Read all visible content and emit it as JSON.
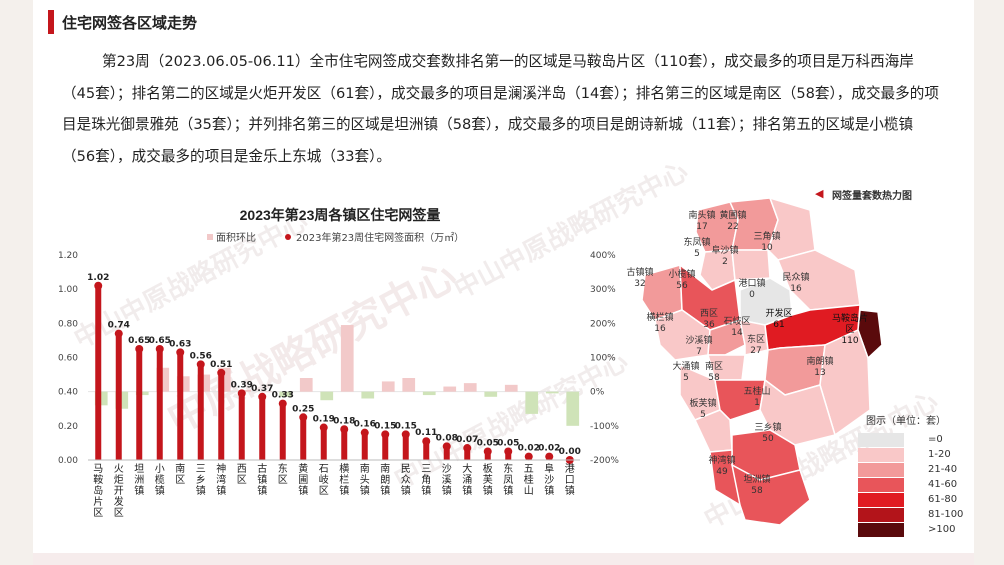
{
  "section_title": "住宅网签各区域走势",
  "paragraph": "第23周（2023.06.05-06.11）全市住宅网签成交套数排名第一的区域是马鞍岛片区（110套），成交最多的项目是万科西海岸（45套）；排名第二的区域是火炬开发区（61套），成交最多的项目是澜溪泮岛（14套）；排名第三的区域是南区（58套），成交最多的项目是珠光御景雅苑（35套）；并列排名第三的区域是坦洲镇（58套），成交最多的项目是朗诗新城（11套）；排名第五的区域是小榄镇（56套），成交最多的项目是金乐上东城（33套）。",
  "watermarks": [
    "中山中原战略研究中心",
    "中原战略研究中心",
    "中山中原战略研究中心",
    "中山中原战略研究中心",
    "中山中原战略研究中心"
  ],
  "chart_data": {
    "type": "bar",
    "title": "2023年第23周各镇区住宅网签量",
    "legend": [
      "面积环比",
      "2023年第23周住宅网签面积（万㎡）"
    ],
    "categories": [
      "马鞍岛片区",
      "火炬开发区",
      "坦洲镇",
      "小榄镇",
      "南区",
      "三乡镇",
      "神湾镇",
      "西区",
      "古镇镇",
      "东区",
      "黄圃镇",
      "石岐区",
      "横栏镇",
      "南头镇",
      "南朗镇",
      "民众镇",
      "三角镇",
      "沙溪镇",
      "大涌镇",
      "板芙镇",
      "东凤镇",
      "五桂山",
      "阜沙镇",
      "港口镇"
    ],
    "series": [
      {
        "name": "2023年第23周住宅网签面积（万㎡）",
        "axis": "left",
        "values": [
          1.02,
          0.74,
          0.65,
          0.65,
          0.63,
          0.56,
          0.51,
          0.39,
          0.37,
          0.33,
          0.25,
          0.19,
          0.18,
          0.16,
          0.15,
          0.15,
          0.11,
          0.08,
          0.07,
          0.05,
          0.05,
          0.02,
          0.02,
          0.0
        ]
      },
      {
        "name": "面积环比",
        "axis": "right",
        "values": [
          -40,
          -50,
          -10,
          70,
          45,
          50,
          70,
          5,
          0,
          -15,
          40,
          -25,
          195,
          -20,
          30,
          40,
          -10,
          15,
          25,
          -15,
          20,
          -65,
          -5,
          -100
        ]
      }
    ],
    "y_left": {
      "min": 0,
      "max": 1.2,
      "ticks": [
        "0.00",
        "0.20",
        "0.40",
        "0.60",
        "0.80",
        "1.00",
        "1.20"
      ]
    },
    "y_right": {
      "min": -200,
      "max": 400,
      "ticks": [
        "-200%",
        "-100%",
        "0%",
        "100%",
        "200%",
        "300%",
        "400%"
      ]
    },
    "colors": {
      "area_bar": "#c4161c",
      "ratio_pos": "#f2c9c9",
      "ratio_neg": "#cfe3b8"
    }
  },
  "map": {
    "title": "网签量套数热力图",
    "towns": [
      {
        "name": "南头镇",
        "value": "17"
      },
      {
        "name": "黄圃镇",
        "value": "22"
      },
      {
        "name": "东凤镇",
        "value": "5"
      },
      {
        "name": "三角镇",
        "value": "10"
      },
      {
        "name": "阜沙镇",
        "value": "2"
      },
      {
        "name": "古镇镇",
        "value": "32"
      },
      {
        "name": "小榄镇",
        "value": "56"
      },
      {
        "name": "港口镇",
        "value": "0"
      },
      {
        "name": "民众镇",
        "value": "16"
      },
      {
        "name": "横栏镇",
        "value": "16"
      },
      {
        "name": "西区",
        "value": "36"
      },
      {
        "name": "石岐区",
        "value": "14"
      },
      {
        "name": "开发区",
        "value": "61"
      },
      {
        "name": "马鞍岛片区",
        "value": "110"
      },
      {
        "name": "沙溪镇",
        "value": "7"
      },
      {
        "name": "东区",
        "value": "27"
      },
      {
        "name": "大涌镇",
        "value": "5"
      },
      {
        "name": "南区",
        "value": "58"
      },
      {
        "name": "南朗镇",
        "value": "13"
      },
      {
        "name": "五桂山",
        "value": "1"
      },
      {
        "name": "板芙镇",
        "value": "5"
      },
      {
        "name": "三乡镇",
        "value": "50"
      },
      {
        "name": "神湾镇",
        "value": "49"
      },
      {
        "name": "坦洲镇",
        "value": "58"
      }
    ],
    "legend_title": "图示（单位：套）",
    "legend": [
      {
        "label": "=0",
        "color": "#e6e6e6"
      },
      {
        "label": "1-20",
        "color": "#f9c8c8"
      },
      {
        "label": "21-40",
        "color": "#f29a9a"
      },
      {
        "label": "41-60",
        "color": "#e8555a"
      },
      {
        "label": "61-80",
        "color": "#e01b22"
      },
      {
        "label": "81-100",
        "color": "#b3141a"
      },
      {
        "label": ">100",
        "color": "#5a0a0c"
      }
    ]
  }
}
